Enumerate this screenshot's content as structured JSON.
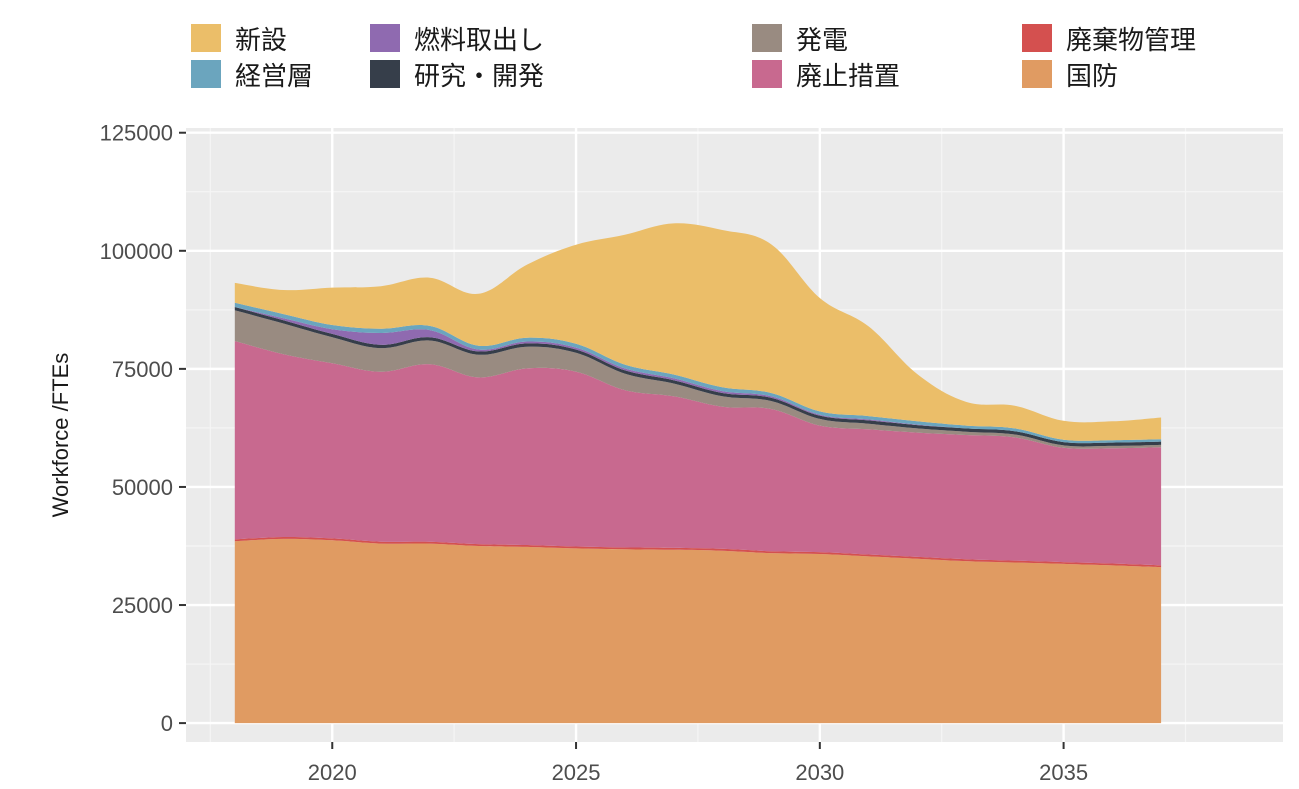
{
  "chart_data": {
    "type": "area",
    "stacked": true,
    "title": "",
    "xlabel": "",
    "ylabel": "Workforce /FTEs",
    "xlim": [
      2017.0,
      2039.5
    ],
    "ylim": [
      -4000,
      126000
    ],
    "x_ticks": [
      2020,
      2025,
      2030,
      2035
    ],
    "y_ticks": [
      0,
      25000,
      50000,
      75000,
      100000,
      125000
    ],
    "grid": true,
    "legend_position": "top",
    "x": [
      2018,
      2019,
      2020,
      2021,
      2022,
      2023,
      2024,
      2025,
      2026,
      2027,
      2028,
      2029,
      2030,
      2031,
      2032,
      2033,
      2034,
      2035,
      2036,
      2037
    ],
    "series": [
      {
        "name": "国防",
        "color": "#E09B62",
        "values": [
          38500,
          39000,
          38700,
          38000,
          38000,
          37500,
          37300,
          37000,
          36800,
          36700,
          36500,
          36000,
          35800,
          35300,
          34800,
          34300,
          34000,
          33700,
          33400,
          33000
        ]
      },
      {
        "name": "廃棄物管理",
        "color": "#D4504F",
        "values": [
          400,
          400,
          400,
          400,
          400,
          400,
          400,
          400,
          400,
          400,
          400,
          400,
          400,
          400,
          400,
          400,
          400,
          400,
          400,
          400
        ]
      },
      {
        "name": "廃止措置",
        "color": "#C8698F",
        "values": [
          42000,
          38700,
          37100,
          36000,
          37600,
          35300,
          37400,
          37000,
          33300,
          32100,
          30100,
          30100,
          26800,
          26500,
          26300,
          26300,
          26100,
          24200,
          24400,
          25000
        ]
      },
      {
        "name": "発電",
        "color": "#998B81",
        "values": [
          6500,
          6500,
          5500,
          5000,
          5000,
          4800,
          4600,
          4000,
          3500,
          2700,
          2200,
          1700,
          1400,
          1200,
          900,
          700,
          600,
          500,
          500,
          500
        ]
      },
      {
        "name": "研究・開発",
        "color": "#363E4A",
        "values": [
          700,
          700,
          700,
          700,
          700,
          700,
          700,
          700,
          700,
          700,
          700,
          700,
          700,
          700,
          700,
          700,
          700,
          700,
          700,
          700
        ]
      },
      {
        "name": "燃料取出し",
        "color": "#8F6AB0",
        "values": [
          0,
          400,
          1000,
          2500,
          1500,
          400,
          400,
          400,
          400,
          400,
          400,
          300,
          200,
          200,
          100,
          0,
          0,
          0,
          0,
          0
        ]
      },
      {
        "name": "経営層",
        "color": "#6BA5BE",
        "values": [
          900,
          900,
          900,
          900,
          900,
          800,
          800,
          800,
          800,
          800,
          800,
          700,
          700,
          700,
          700,
          600,
          600,
          500,
          500,
          500
        ]
      },
      {
        "name": "新設",
        "color": "#EBBE69",
        "values": [
          4200,
          5100,
          7900,
          9000,
          10200,
          11000,
          15500,
          21000,
          27500,
          32000,
          33300,
          31500,
          24000,
          19000,
          10000,
          5000,
          4800,
          4000,
          4000,
          4600
        ]
      }
    ]
  },
  "legend": [
    {
      "label": "新設",
      "color": "#EBBE69"
    },
    {
      "label": "経営層",
      "color": "#6BA5BE"
    },
    {
      "label": "燃料取出し",
      "color": "#8F6AB0"
    },
    {
      "label": "研究・開発",
      "color": "#363E4A"
    },
    {
      "label": "発電",
      "color": "#998B81"
    },
    {
      "label": "廃止措置",
      "color": "#C8698F"
    },
    {
      "label": "廃棄物管理",
      "color": "#D4504F"
    },
    {
      "label": "国防",
      "color": "#E09B62"
    }
  ]
}
